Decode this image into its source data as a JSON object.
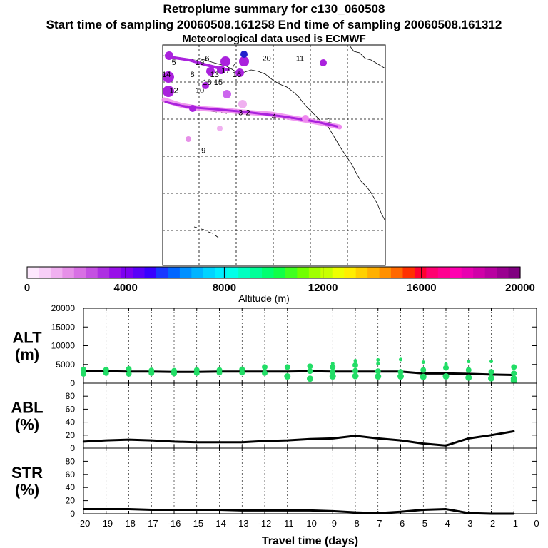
{
  "header": {
    "title": "Retroplume summary for c130_060508",
    "sampling": "Start time of sampling 20060508.161258     End time of sampling 20060508.161312",
    "met": "Meteorological data used is ECMWF"
  },
  "colors": {
    "alt_points": "#22dd66",
    "plume_light": "#ee88ee",
    "plume_dark": "#aa22dd",
    "line": "#000000"
  },
  "map": {
    "plume_labels": [
      {
        "text": "1",
        "lon": -130,
        "lat": 40.5
      },
      {
        "text": "2",
        "lon": -152,
        "lat": 42.5
      },
      {
        "text": "3",
        "lon": -154,
        "lat": 42.5
      },
      {
        "text": "4",
        "lon": -145,
        "lat": 41.5
      },
      {
        "text": "5",
        "lon": -172,
        "lat": 55
      },
      {
        "text": "6",
        "lon": -163,
        "lat": 56
      },
      {
        "text": "7",
        "lon": -156,
        "lat": 54
      },
      {
        "text": "8",
        "lon": -167,
        "lat": 52
      },
      {
        "text": "9",
        "lon": -164,
        "lat": 33
      },
      {
        "text": "10",
        "lon": -165,
        "lat": 48
      },
      {
        "text": "11",
        "lon": -138,
        "lat": 56
      },
      {
        "text": "12",
        "lon": -172,
        "lat": 48
      },
      {
        "text": "13",
        "lon": -161,
        "lat": 52
      },
      {
        "text": "14",
        "lon": -174,
        "lat": 52
      },
      {
        "text": "15",
        "lon": -160,
        "lat": 50
      },
      {
        "text": "16",
        "lon": -155,
        "lat": 52
      },
      {
        "text": "17",
        "lon": -158,
        "lat": 53
      },
      {
        "text": "18",
        "lon": -163,
        "lat": 50
      },
      {
        "text": "19",
        "lon": -165,
        "lat": 55
      },
      {
        "text": "20",
        "lon": -147,
        "lat": 56
      }
    ]
  },
  "colorbar": {
    "label": "Altitude (m)",
    "min": 0,
    "max": 20000,
    "tick_labels": [
      "0",
      "4000",
      "8000",
      "12000",
      "16000",
      "20000"
    ],
    "colors": [
      "#fde8fd",
      "#f8cff8",
      "#f0b0f0",
      "#e690e8",
      "#d870e4",
      "#c450e2",
      "#ad30e2",
      "#9810e8",
      "#7c00f0",
      "#5a00f8",
      "#3800ff",
      "#1838ff",
      "#0066ff",
      "#0090ff",
      "#00b4ff",
      "#00d4ff",
      "#00eeff",
      "#00ffe8",
      "#00ffc0",
      "#00ff98",
      "#00ff70",
      "#10ff48",
      "#40ff20",
      "#70ff00",
      "#a0ff00",
      "#c8ff00",
      "#eeff00",
      "#ffee00",
      "#ffd000",
      "#ffb000",
      "#ff9000",
      "#ff6800",
      "#ff3000",
      "#ff0030",
      "#ff0070",
      "#ff0090",
      "#ff00b0",
      "#e800b0",
      "#d000a8",
      "#b800a0",
      "#9a0090",
      "#800080"
    ]
  },
  "chart_data": [
    {
      "type": "scatter",
      "panel": "ALT",
      "ylabel": "ALT\n(m)",
      "ylabel_lines": [
        "ALT",
        "(m)"
      ],
      "xlim": [
        -20,
        0
      ],
      "ylim": [
        0,
        20000
      ],
      "yticks": [
        "0",
        "5000",
        "10000",
        "15000",
        "20000"
      ],
      "series": [
        {
          "name": "median altitude",
          "kind": "line",
          "x": [
            -20,
            -19,
            -18,
            -17,
            -16,
            -15,
            -14,
            -13,
            -12,
            -11,
            -10,
            -9,
            -8,
            -7,
            -6,
            -5,
            -4,
            -3,
            -2,
            -1
          ],
          "y": [
            3200,
            3200,
            3100,
            3100,
            3000,
            3000,
            3100,
            3100,
            3100,
            3100,
            3200,
            3100,
            3100,
            3100,
            3100,
            2600,
            2600,
            2500,
            2300,
            2200
          ]
        },
        {
          "name": "cluster altitudes",
          "kind": "points",
          "points": [
            {
              "x": -20,
              "y": 3600
            },
            {
              "x": -20,
              "y": 2500
            },
            {
              "x": -19,
              "y": 3600
            },
            {
              "x": -19,
              "y": 2700
            },
            {
              "x": -18,
              "y": 3800
            },
            {
              "x": -18,
              "y": 2500
            },
            {
              "x": -17,
              "y": 3400
            },
            {
              "x": -17,
              "y": 2700
            },
            {
              "x": -16,
              "y": 3300
            },
            {
              "x": -16,
              "y": 2600
            },
            {
              "x": -15,
              "y": 3500
            },
            {
              "x": -15,
              "y": 2700
            },
            {
              "x": -14,
              "y": 3500
            },
            {
              "x": -14,
              "y": 2800
            },
            {
              "x": -13,
              "y": 3700
            },
            {
              "x": -13,
              "y": 2800
            },
            {
              "x": -12,
              "y": 4300
            },
            {
              "x": -12,
              "y": 2700
            },
            {
              "x": -11,
              "y": 4300
            },
            {
              "x": -11,
              "y": 1800
            },
            {
              "x": -10,
              "y": 4500
            },
            {
              "x": -10,
              "y": 3200
            },
            {
              "x": -10,
              "y": 1200
            },
            {
              "x": -9,
              "y": 5200
            },
            {
              "x": -9,
              "y": 4300
            },
            {
              "x": -9,
              "y": 3000
            },
            {
              "x": -9,
              "y": 1800
            },
            {
              "x": -8,
              "y": 6000
            },
            {
              "x": -8,
              "y": 4800
            },
            {
              "x": -8,
              "y": 3300
            },
            {
              "x": -8,
              "y": 1900
            },
            {
              "x": -7,
              "y": 6200
            },
            {
              "x": -7,
              "y": 5200
            },
            {
              "x": -7,
              "y": 3200
            },
            {
              "x": -7,
              "y": 1800
            },
            {
              "x": -6,
              "y": 6300
            },
            {
              "x": -6,
              "y": 3000
            },
            {
              "x": -6,
              "y": 1800
            },
            {
              "x": -5,
              "y": 5600
            },
            {
              "x": -5,
              "y": 3500
            },
            {
              "x": -5,
              "y": 1700
            },
            {
              "x": -4,
              "y": 5100
            },
            {
              "x": -4,
              "y": 4100
            },
            {
              "x": -4,
              "y": 1800
            },
            {
              "x": -3,
              "y": 5800
            },
            {
              "x": -3,
              "y": 3500
            },
            {
              "x": -3,
              "y": 1500
            },
            {
              "x": -2,
              "y": 5800
            },
            {
              "x": -2,
              "y": 3000
            },
            {
              "x": -2,
              "y": 1300
            },
            {
              "x": -1,
              "y": 4300
            },
            {
              "x": -1,
              "y": 2600
            },
            {
              "x": -1,
              "y": 1200
            },
            {
              "x": -1,
              "y": 600
            }
          ]
        }
      ]
    },
    {
      "type": "line",
      "panel": "ABL",
      "ylabel_lines": [
        "ABL",
        "(%)"
      ],
      "xlim": [
        -20,
        0
      ],
      "ylim": [
        0,
        100
      ],
      "yticks": [
        "0",
        "20",
        "40",
        "60",
        "80"
      ],
      "series": [
        {
          "name": "ABL fraction",
          "x": [
            -20,
            -19,
            -18,
            -17,
            -16,
            -15,
            -14,
            -13,
            -12,
            -11,
            -10,
            -9,
            -8,
            -7,
            -6,
            -5,
            -4,
            -3,
            -2,
            -1
          ],
          "y": [
            10,
            12,
            13,
            12,
            10,
            9,
            9,
            9,
            11,
            12,
            14,
            15,
            19,
            15,
            12,
            7,
            4,
            15,
            20,
            26
          ]
        }
      ]
    },
    {
      "type": "line",
      "panel": "STR",
      "ylabel_lines": [
        "STR",
        "(%)"
      ],
      "xlim": [
        -20,
        0
      ],
      "ylim": [
        0,
        100
      ],
      "yticks": [
        "0",
        "20",
        "40",
        "60",
        "80"
      ],
      "xlabel": "Travel time (days)",
      "xticks": [
        "-20",
        "-19",
        "-18",
        "-17",
        "-16",
        "-15",
        "-14",
        "-13",
        "-12",
        "-11",
        "-10",
        "-9",
        "-8",
        "-7",
        "-6",
        "-5",
        "-4",
        "-3",
        "-2",
        "-1",
        "0"
      ],
      "series": [
        {
          "name": "stratospheric fraction",
          "x": [
            -20,
            -19,
            -18,
            -17,
            -16,
            -15,
            -14,
            -13,
            -12,
            -11,
            -10,
            -9,
            -8,
            -7,
            -6,
            -5,
            -4,
            -3,
            -2,
            -1
          ],
          "y": [
            7,
            7,
            7,
            6,
            6,
            6,
            6,
            5,
            5,
            5,
            5,
            4,
            2,
            1,
            3,
            6,
            7,
            1,
            0,
            0
          ]
        }
      ]
    }
  ]
}
